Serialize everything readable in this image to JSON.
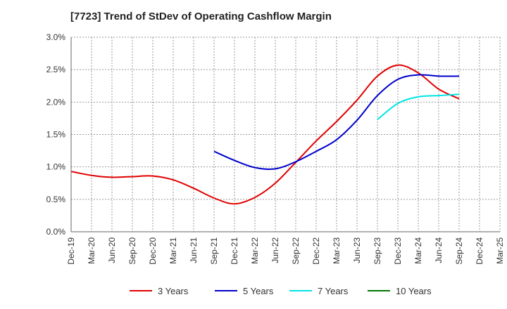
{
  "chart_data": {
    "type": "line",
    "title": "[7723]  Trend of StDev of Operating Cashflow Margin",
    "xlabel": "",
    "ylabel": "",
    "ylim": [
      0,
      3.0
    ],
    "yticks": [
      0,
      0.5,
      1.0,
      1.5,
      2.0,
      2.5,
      3.0
    ],
    "ytick_labels": [
      "0.0%",
      "0.5%",
      "1.0%",
      "1.5%",
      "2.0%",
      "2.5%",
      "3.0%"
    ],
    "x_tick_labels": [
      "Dec-19",
      "Mar-20",
      "Jun-20",
      "Sep-20",
      "Dec-20",
      "Mar-21",
      "Jun-21",
      "Sep-21",
      "Dec-21",
      "Mar-22",
      "Jun-22",
      "Sep-22",
      "Dec-22",
      "Mar-23",
      "Jun-23",
      "Sep-23",
      "Dec-23",
      "Mar-24",
      "Jun-24",
      "Sep-24",
      "Dec-24",
      "Mar-25"
    ],
    "grid": true,
    "legend_position": "bottom",
    "series": [
      {
        "name": "3 Years",
        "color": "#e00000",
        "values": [
          0.93,
          0.87,
          0.84,
          0.85,
          0.86,
          0.8,
          0.67,
          0.52,
          0.43,
          0.53,
          0.75,
          1.07,
          1.4,
          1.7,
          2.03,
          2.4,
          2.57,
          2.45,
          2.2,
          2.05,
          null,
          null
        ]
      },
      {
        "name": "5 Years",
        "color": "#0000cc",
        "values": [
          null,
          null,
          null,
          null,
          null,
          null,
          null,
          1.24,
          1.1,
          0.99,
          0.97,
          1.08,
          1.24,
          1.42,
          1.72,
          2.1,
          2.35,
          2.42,
          2.4,
          2.4,
          null,
          null
        ]
      },
      {
        "name": "7 Years",
        "color": "#00e5e5",
        "values": [
          null,
          null,
          null,
          null,
          null,
          null,
          null,
          null,
          null,
          null,
          null,
          null,
          null,
          null,
          null,
          1.73,
          1.98,
          2.08,
          2.1,
          2.12,
          null,
          null
        ]
      },
      {
        "name": "10 Years",
        "color": "#007700",
        "values": [
          null,
          null,
          null,
          null,
          null,
          null,
          null,
          null,
          null,
          null,
          null,
          null,
          null,
          null,
          null,
          null,
          null,
          null,
          null,
          null,
          null,
          null
        ]
      }
    ]
  }
}
